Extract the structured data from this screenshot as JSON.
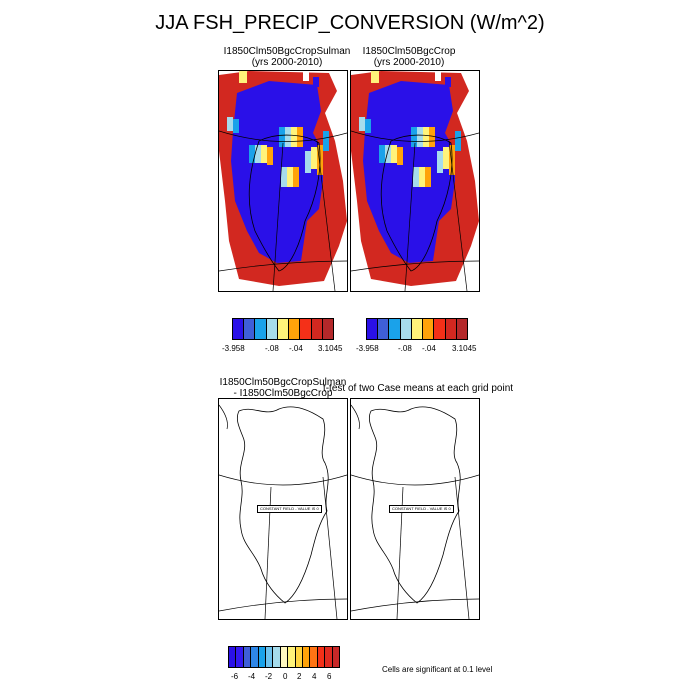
{
  "main_title": "JJA FSH_PRECIP_CONVERSION (W/m^2)",
  "panels": {
    "p1": {
      "title1": "I1850Clm50BgcCropSulman",
      "title2": "(yrs 2000-2010)"
    },
    "p2": {
      "title1": "I1850Clm50BgcCrop",
      "title2": "(yrs 2000-2010)"
    },
    "p3": {
      "title1": "I1850Clm50BgcCropSulman",
      "title2": "- I1850Clm50BgcCrop",
      "overlay": "CONSTANT FIELD - VALUE IS 0"
    },
    "p4": {
      "title1": "t-test of two Case means at each grid point",
      "overlay": "CONSTANT FIELD - VALUE IS 0"
    }
  },
  "colorbar_top": {
    "colors": [
      "#2a10e8",
      "#3f5fd8",
      "#1aa2ea",
      "#a6dcec",
      "#fff37a",
      "#ffa30a",
      "#f43018",
      "#d22820",
      "#b4282a"
    ],
    "labels": [
      "-3.958",
      "-.08",
      "-.04",
      "3.1045"
    ]
  },
  "colorbar_bottom": {
    "colors": [
      "#2a10e8",
      "#3318f0",
      "#3f5fd8",
      "#2e86e8",
      "#1aa2ea",
      "#6ec3ee",
      "#a6dcec",
      "#fff8c0",
      "#fff37a",
      "#ffd540",
      "#ffa30a",
      "#ff7414",
      "#f43018",
      "#e02a20",
      "#c82828"
    ],
    "labels": [
      "-6",
      "-4",
      "-2",
      "0",
      "2",
      "4",
      "6"
    ]
  },
  "significance_note": "Cells are significant at 0.1 level"
}
